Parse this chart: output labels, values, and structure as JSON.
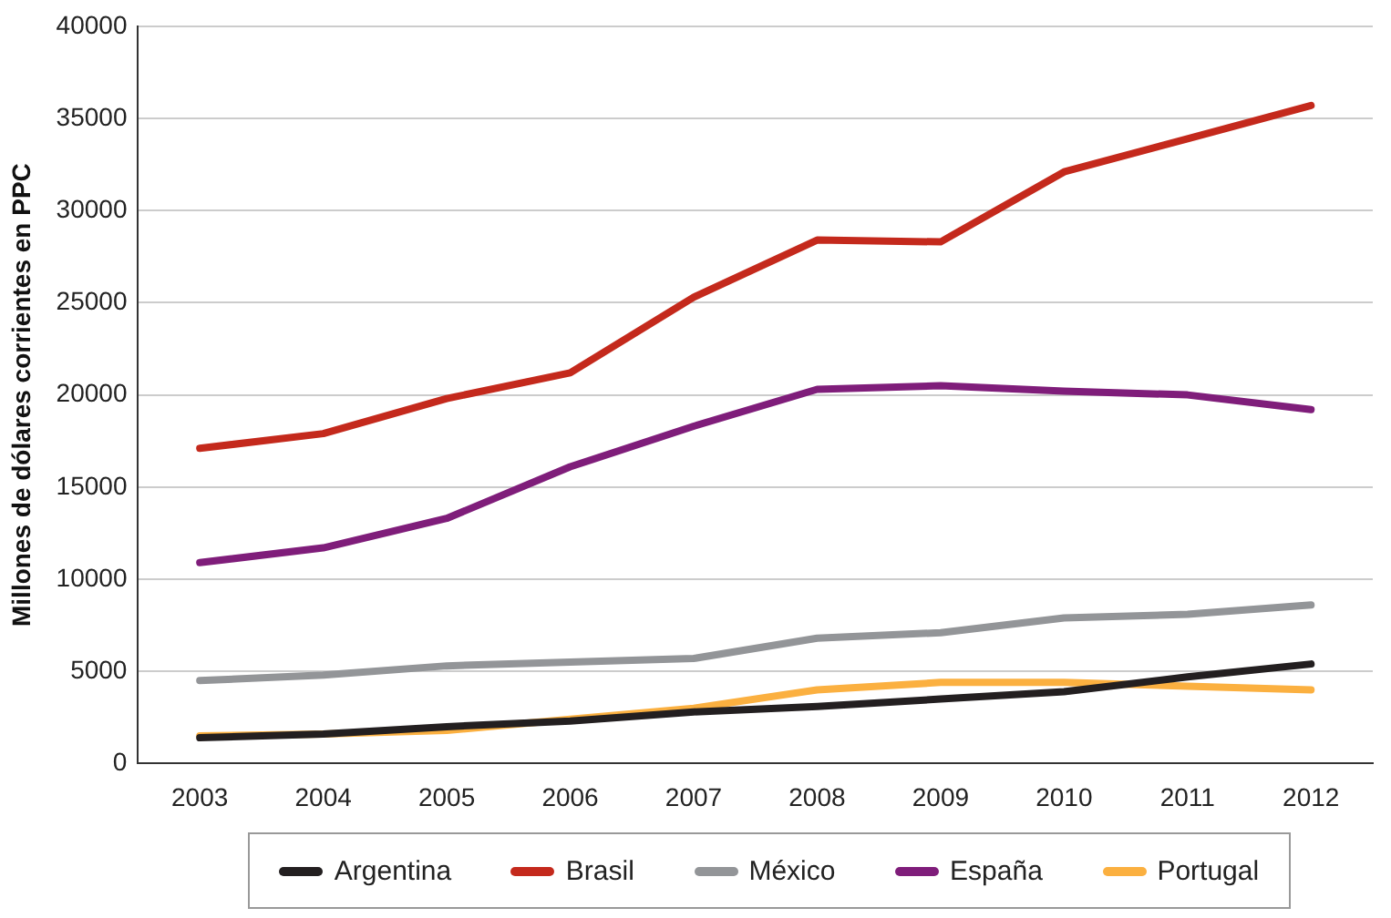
{
  "chart_data": {
    "type": "line",
    "ylabel": "Millones de dólares corrientes en PPC",
    "categories": [
      "2003",
      "2004",
      "2005",
      "2006",
      "2007",
      "2008",
      "2009",
      "2010",
      "2011",
      "2012"
    ],
    "series": [
      {
        "name": "Argentina",
        "color": "#231f20",
        "values": [
          1400,
          1600,
          2000,
          2300,
          2800,
          3100,
          3500,
          3900,
          4700,
          5400
        ]
      },
      {
        "name": "Brasil",
        "color": "#c4291c",
        "values": [
          17100,
          17900,
          19800,
          21200,
          25300,
          28400,
          28300,
          32100,
          33900,
          35700
        ]
      },
      {
        "name": "México",
        "color": "#939598",
        "values": [
          4500,
          4800,
          5300,
          5500,
          5700,
          6800,
          7100,
          7900,
          8100,
          8600
        ]
      },
      {
        "name": "España",
        "color": "#7f1d7a",
        "values": [
          10900,
          11700,
          13300,
          16100,
          18300,
          20300,
          20500,
          20200,
          20000,
          19200
        ]
      },
      {
        "name": "Portugal",
        "color": "#fbb040",
        "values": [
          1500,
          1600,
          1800,
          2400,
          3000,
          4000,
          4400,
          4400,
          4200,
          4000
        ]
      }
    ],
    "ylim": [
      0,
      40000
    ],
    "yticks": [
      0,
      5000,
      10000,
      15000,
      20000,
      25000,
      30000,
      35000,
      40000
    ],
    "grid": "y",
    "legend": "bottom",
    "marker": "none",
    "line_style": "solid"
  }
}
